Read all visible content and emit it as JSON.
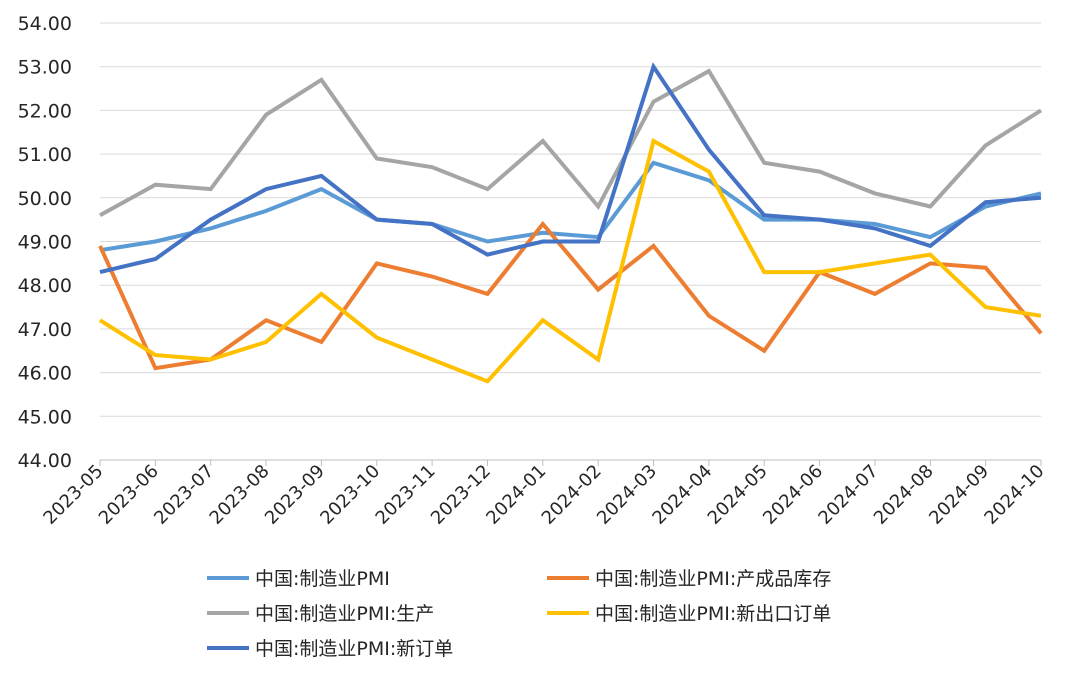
{
  "chart_data": {
    "type": "line",
    "title": "",
    "xlabel": "",
    "ylabel": "",
    "ylim": [
      44,
      54
    ],
    "ytick_step": 1,
    "y_ticks": [
      "44.00",
      "45.00",
      "46.00",
      "47.00",
      "48.00",
      "49.00",
      "50.00",
      "51.00",
      "52.00",
      "53.00",
      "54.00"
    ],
    "grid": "horizontal",
    "legend_position": "bottom",
    "categories": [
      "2023-05",
      "2023-06",
      "2023-07",
      "2023-08",
      "2023-09",
      "2023-10",
      "2023-11",
      "2023-12",
      "2024-01",
      "2024-02",
      "2024-03",
      "2024-04",
      "2024-05",
      "2024-06",
      "2024-07",
      "2024-08",
      "2024-09",
      "2024-10"
    ],
    "series": [
      {
        "name": "中国:制造业PMI",
        "color": "#5B9BD5",
        "values": [
          48.8,
          49.0,
          49.3,
          49.7,
          50.2,
          49.5,
          49.4,
          49.0,
          49.2,
          49.1,
          50.8,
          50.4,
          49.5,
          49.5,
          49.4,
          49.1,
          49.8,
          50.1
        ]
      },
      {
        "name": "中国:制造业PMI:产成品库存",
        "color": "#ED7D31",
        "values": [
          48.9,
          46.1,
          46.3,
          47.2,
          46.7,
          48.5,
          48.2,
          47.8,
          49.4,
          47.9,
          48.9,
          47.3,
          46.5,
          48.3,
          47.8,
          48.5,
          48.4,
          46.9
        ]
      },
      {
        "name": "中国:制造业PMI:生产",
        "color": "#A5A5A5",
        "values": [
          49.6,
          50.3,
          50.2,
          51.9,
          52.7,
          50.9,
          50.7,
          50.2,
          51.3,
          49.8,
          52.2,
          52.9,
          50.8,
          50.6,
          50.1,
          49.8,
          51.2,
          52.0
        ]
      },
      {
        "name": "中国:制造业PMI:新出口订单",
        "color": "#FFC000",
        "values": [
          47.2,
          46.4,
          46.3,
          46.7,
          47.8,
          46.8,
          46.3,
          45.8,
          47.2,
          46.3,
          51.3,
          50.6,
          48.3,
          48.3,
          48.5,
          48.7,
          47.5,
          47.3
        ]
      },
      {
        "name": "中国:制造业PMI:新订单",
        "color": "#4472C4",
        "values": [
          48.3,
          48.6,
          49.5,
          50.2,
          50.5,
          49.5,
          49.4,
          48.7,
          49.0,
          49.0,
          53.0,
          51.1,
          49.6,
          49.5,
          49.3,
          48.9,
          49.9,
          50.0
        ]
      }
    ]
  }
}
